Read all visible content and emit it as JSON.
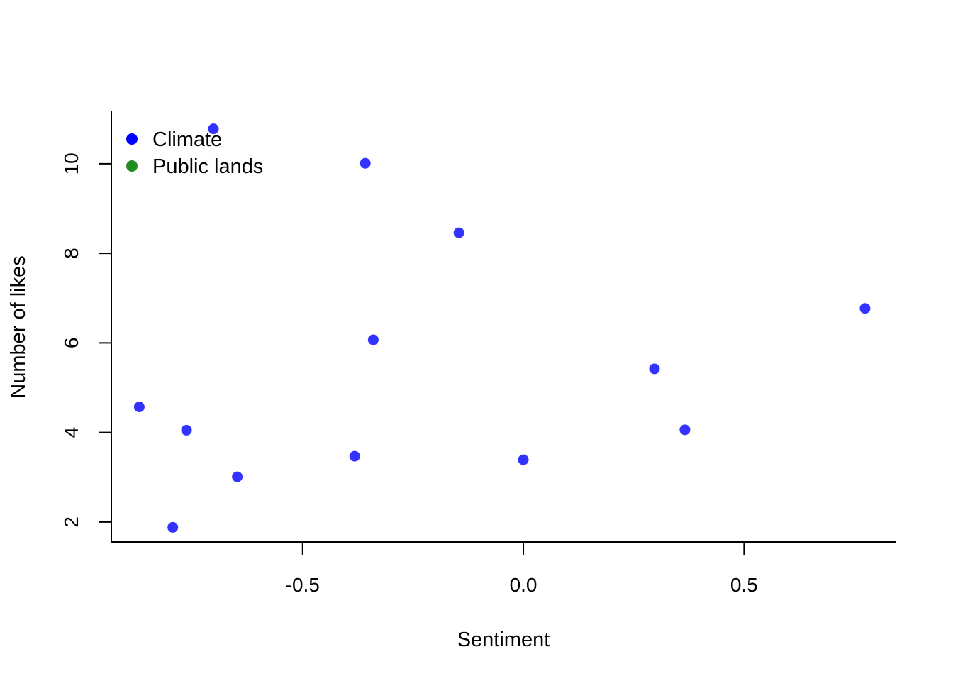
{
  "chart_data": {
    "type": "scatter",
    "title": "",
    "xlabel": "Sentiment",
    "ylabel": "Number of likes",
    "xlim": [
      -0.9333,
      0.8432
    ],
    "ylim": [
      1.5542,
      11.17
    ],
    "x_ticks": [
      -0.5,
      0.0,
      0.5
    ],
    "x_tick_labels": [
      "-0.5",
      "0.0",
      "0.5"
    ],
    "y_ticks": [
      2,
      4,
      6,
      8,
      10
    ],
    "y_tick_labels": [
      "2",
      "4",
      "6",
      "8",
      "10"
    ],
    "grid": false,
    "legend": {
      "position": "top-left",
      "entries": [
        {
          "label": "Climate",
          "color": "#0000ff"
        },
        {
          "label": "Public lands",
          "color": "#228b22"
        }
      ]
    },
    "series": [
      {
        "name": "Climate",
        "color": "#0000ff",
        "points": [
          {
            "x": -0.87,
            "y": 4.57
          },
          {
            "x": -0.794,
            "y": 1.88
          },
          {
            "x": -0.763,
            "y": 4.05
          },
          {
            "x": -0.702,
            "y": 10.78
          },
          {
            "x": -0.648,
            "y": 3.01
          },
          {
            "x": -0.382,
            "y": 3.47
          },
          {
            "x": -0.358,
            "y": 10.01
          },
          {
            "x": -0.34,
            "y": 6.07
          },
          {
            "x": -0.146,
            "y": 8.46
          },
          {
            "x": 0.0,
            "y": 3.39
          },
          {
            "x": 0.297,
            "y": 5.42
          },
          {
            "x": 0.366,
            "y": 4.06
          },
          {
            "x": 0.774,
            "y": 6.77
          }
        ]
      },
      {
        "name": "Public lands",
        "color": "#228b22",
        "points": []
      }
    ]
  }
}
